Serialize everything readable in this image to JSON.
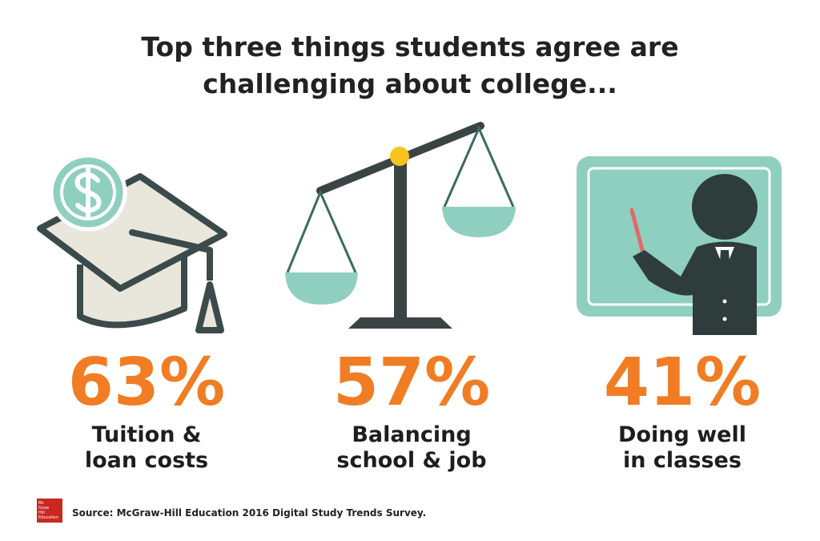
{
  "header": {
    "title_lines": [
      "Top three things students agree are",
      "challenging about college..."
    ]
  },
  "items": [
    {
      "percent": "63%",
      "caption_lines": [
        "Tuition &",
        "loan costs"
      ]
    },
    {
      "percent": "57%",
      "caption_lines": [
        "Balancing",
        "school & job"
      ]
    },
    {
      "percent": "41%",
      "caption_lines": [
        "Doing well",
        "in classes"
      ]
    }
  ],
  "footer": {
    "logo_lines": [
      "Mc",
      "Graw",
      "Hill",
      "Education"
    ],
    "source": "Source: McGraw-Hill Education 2016 Digital Study Trends Survey."
  }
}
